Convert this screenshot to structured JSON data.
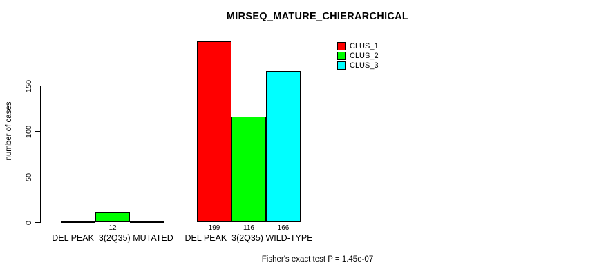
{
  "chart_data": {
    "type": "bar",
    "title": "MIRSEQ_MATURE_CHIERARCHICAL",
    "ylabel": "number of cases",
    "xlabel": "",
    "categories": [
      "DEL PEAK  3(2Q35) MUTATED",
      "DEL PEAK  3(2Q35) WILD-TYPE"
    ],
    "series": [
      {
        "name": "CLUS_1",
        "color": "#ff0000",
        "values": [
          0,
          199
        ]
      },
      {
        "name": "CLUS_2",
        "color": "#00ff00",
        "values": [
          12,
          116
        ]
      },
      {
        "name": "CLUS_3",
        "color": "#00ffff",
        "values": [
          0,
          166
        ]
      }
    ],
    "bar_value_labels": [
      [
        "",
        "12",
        ""
      ],
      [
        "199",
        "116",
        "166"
      ]
    ],
    "yticks": [
      0,
      50,
      100,
      150
    ],
    "ylim": [
      0,
      200
    ],
    "grid": false,
    "legend_position": "top-right",
    "annotation": "Fisher's exact test P = 1.45e-07",
    "axis_color": "#000000",
    "background_color": "#ffffff"
  }
}
